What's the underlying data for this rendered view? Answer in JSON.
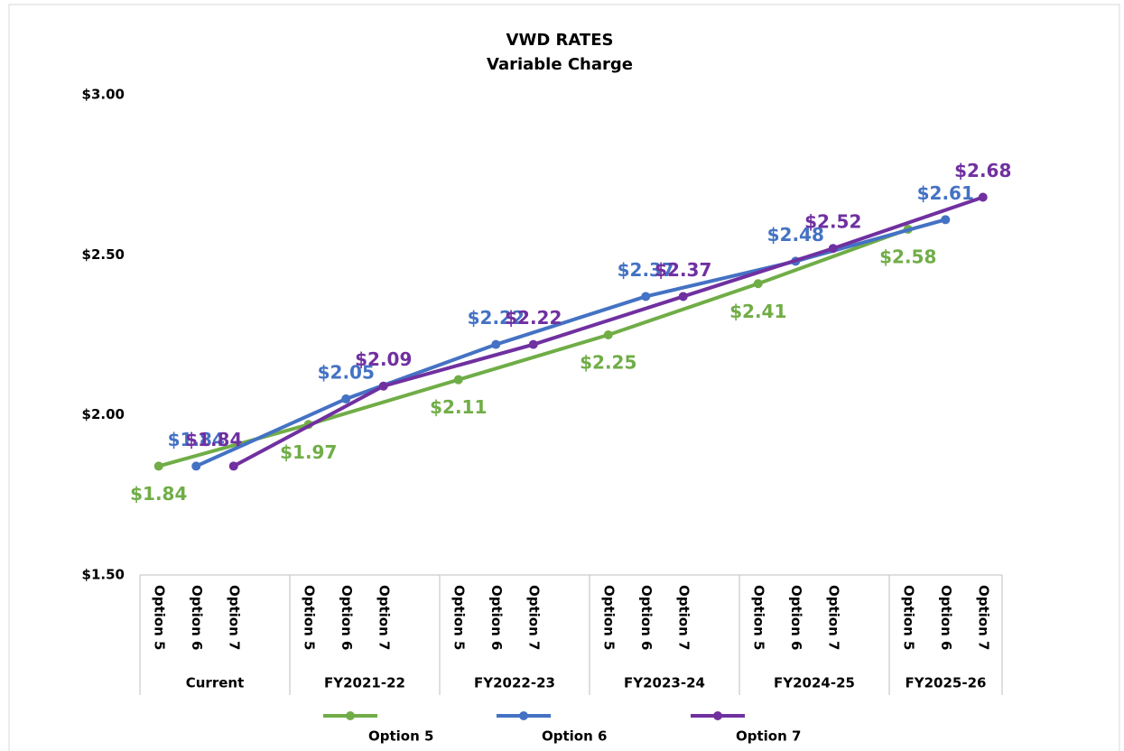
{
  "chart_data": {
    "type": "line",
    "title": "VWD RATES",
    "subtitle": "Variable Charge",
    "categories": [
      "Current",
      "FY2021-22",
      "FY2022-23",
      "FY2023-24",
      "FY2024-25",
      "FY2025-26"
    ],
    "subcategories": [
      "Option 5",
      "Option 6",
      "Option 7"
    ],
    "series": [
      {
        "name": "Option 5",
        "color": "#70ad47",
        "values": [
          1.84,
          1.97,
          2.11,
          2.25,
          2.41,
          2.58
        ],
        "value_labels": [
          "$1.84",
          "$1.97",
          "$2.11",
          "$2.25",
          "$2.41",
          "$2.58"
        ]
      },
      {
        "name": "Option 6",
        "color": "#4472c4",
        "values": [
          1.84,
          2.05,
          2.22,
          2.37,
          2.48,
          2.61
        ],
        "value_labels": [
          "$1.84",
          "$2.05",
          "$2.22",
          "$2.37",
          "$2.48",
          "$2.61"
        ]
      },
      {
        "name": "Option 7",
        "color": "#7030a0",
        "values": [
          1.84,
          2.09,
          2.22,
          2.37,
          2.52,
          2.68
        ],
        "value_labels": [
          "$1.84",
          "$2.09",
          "$2.22",
          "$2.37",
          "$2.52",
          "$2.68"
        ]
      }
    ],
    "ylim": [
      1.5,
      3.0
    ],
    "yticks": [
      {
        "value": 1.5,
        "label": "$1.50"
      },
      {
        "value": 2.0,
        "label": "$2.00"
      },
      {
        "value": 2.5,
        "label": "$2.50"
      },
      {
        "value": 3.0,
        "label": "$3.00"
      }
    ],
    "grid": false,
    "legend": "bottom"
  }
}
